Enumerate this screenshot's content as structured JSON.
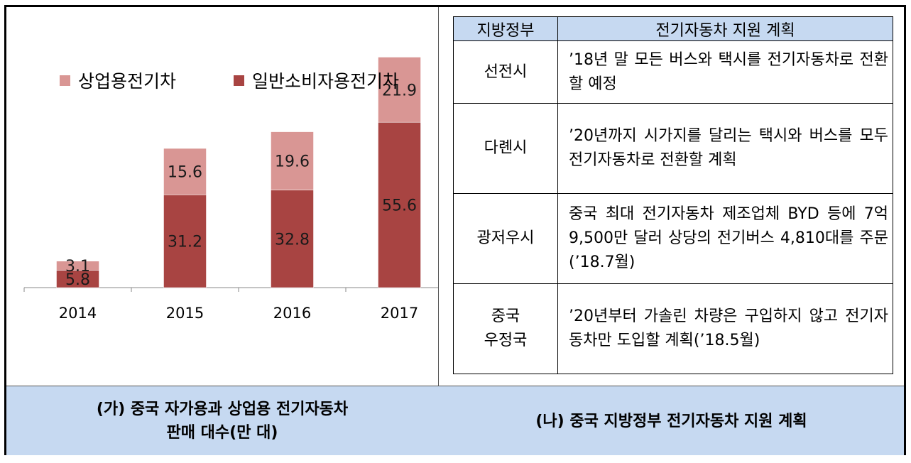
{
  "left_caption": {
    "line1": "(가) 중국 자가용과 상업용 전기자동차",
    "line2": "판매 대수(만 대)"
  },
  "right_caption": "(나) 중국 지방정부 전기자동차 지원 계획",
  "table": {
    "headers": [
      "지방정부",
      "전기자동차 지원 계획"
    ],
    "rows": [
      {
        "city": [
          "선전시"
        ],
        "plan": "’18년 말 모든 버스와 택시를 전기자동차로 전환할 예정"
      },
      {
        "city": [
          "다롄시"
        ],
        "plan": "’20년까지 시가지를 달리는 택시와 버스를 모두 전기자동차로 전환할 계획"
      },
      {
        "city": [
          "광저우시"
        ],
        "plan": "중국 최대 전기자동차 제조업체 BYD 등에 7억 9,500만 달러 상당의 전기버스 4,810대를 주문(’18.7월)"
      },
      {
        "city": [
          "중국",
          "우정국"
        ],
        "plan": "’20년부터 가솔린 차량은 구입하지 않고 전기자동차만 도입할 계획(’18.5월)"
      }
    ]
  },
  "colors": {
    "commercial": "#d99694",
    "private": "#a84442",
    "caption_bg": "#c6d9f1",
    "header_bg": "#c6d9f1"
  },
  "chart_data": {
    "type": "bar",
    "stacked": true,
    "categories": [
      "2014",
      "2015",
      "2016",
      "2017"
    ],
    "series": [
      {
        "name": "일반소비자용전기차",
        "values": [
          5.8,
          31.2,
          32.8,
          55.6
        ]
      },
      {
        "name": "상업용전기차",
        "values": [
          3.1,
          15.6,
          19.6,
          21.9
        ]
      }
    ],
    "title": "",
    "xlabel": "",
    "ylabel": "",
    "ylim": [
      0,
      80
    ],
    "grid": false,
    "legend": "top"
  }
}
